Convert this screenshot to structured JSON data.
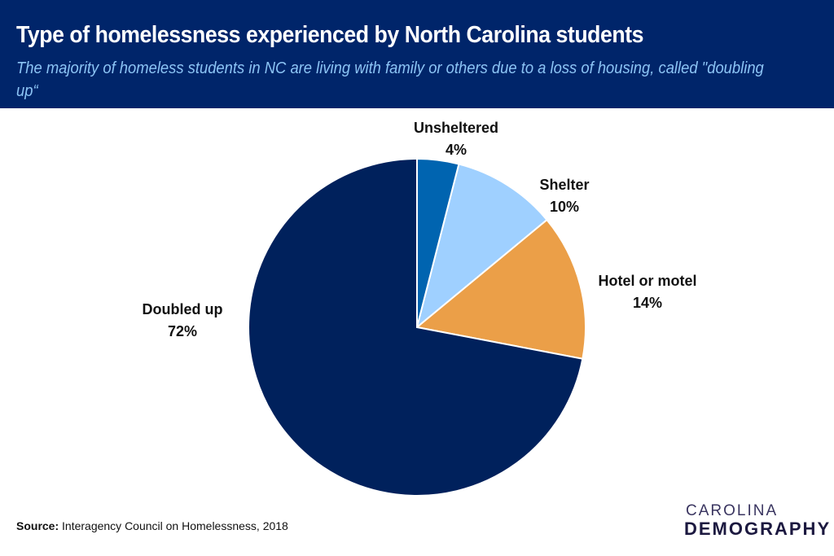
{
  "chart_data": {
    "type": "pie",
    "title": "Type of homelessness experienced by North Carolina students",
    "subtitle": "The majority of homeless students in NC are living with family or others due to a loss of housing, called \"doubling up“",
    "categories": [
      "Unsheltered",
      "Shelter",
      "Hotel or motel",
      "Doubled up"
    ],
    "values": [
      4,
      10,
      14,
      72
    ],
    "value_labels": [
      "4%",
      "10%",
      "14%",
      "72%"
    ],
    "colors": [
      "#0064b0",
      "#9fd0ff",
      "#eb9f48",
      "#00215c"
    ],
    "start": "top, clockwise"
  },
  "source": {
    "label": "Source:",
    "text": " Interagency Council on Homelessness, 2018"
  },
  "logo": {
    "line1": "CAROLINA",
    "line2": "DEMOGRAPHY"
  }
}
